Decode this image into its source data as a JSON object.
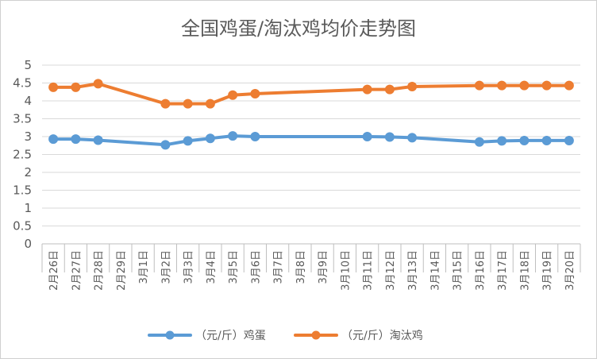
{
  "chart_data": {
    "type": "line",
    "title": "全国鸡蛋/淘汰鸡均价走势图",
    "xlabel": "",
    "ylabel": "",
    "ylim": [
      0,
      5
    ],
    "yticks": [
      "0",
      "0.5",
      "1",
      "1.5",
      "2",
      "2.5",
      "3",
      "3.5",
      "4",
      "4.5",
      "5"
    ],
    "categories": [
      "2月26日",
      "2月27日",
      "2月28日",
      "2月29日",
      "3月1日",
      "3月2日",
      "3月3日",
      "3月4日",
      "3月5日",
      "3月6日",
      "3月7日",
      "3月8日",
      "3月9日",
      "3月10日",
      "3月11日",
      "3月12日",
      "3月13日",
      "3月14日",
      "3月15日",
      "3月16日",
      "3月17日",
      "3月18日",
      "3月19日",
      "3月20日"
    ],
    "grid": true,
    "legend_position": "bottom",
    "series": [
      {
        "name": "（元/斤）鸡蛋",
        "color": "#5b9bd5",
        "values": [
          2.93,
          2.93,
          2.9,
          null,
          null,
          2.77,
          2.88,
          2.95,
          3.02,
          3.0,
          null,
          null,
          null,
          null,
          3.0,
          2.99,
          2.97,
          null,
          null,
          2.85,
          2.88,
          2.89,
          2.89,
          2.89
        ]
      },
      {
        "name": "（元/斤）淘汰鸡",
        "color": "#ed7d31",
        "values": [
          4.38,
          4.38,
          4.48,
          null,
          null,
          3.92,
          3.92,
          3.92,
          4.16,
          4.2,
          null,
          null,
          null,
          null,
          4.32,
          4.32,
          4.4,
          null,
          null,
          4.43,
          4.43,
          4.43,
          4.43,
          4.43
        ]
      }
    ]
  }
}
